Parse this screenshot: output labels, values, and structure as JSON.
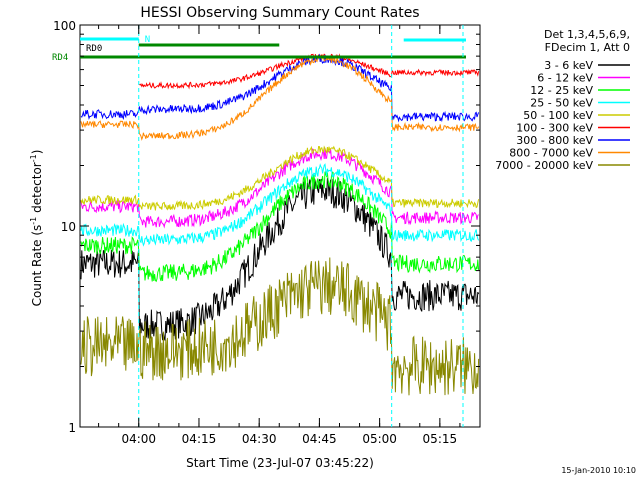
{
  "chart_data": {
    "type": "line",
    "title": "HESSI Observing Summary Count Rates",
    "xlabel": "Start Time (23-Jul-07 03:45:22)",
    "ylabel": "Count Rate (s",
    "ylabel_sup": "-1",
    "ylabel_mid": " detector",
    "ylabel_tail": ")",
    "y_scale": "log",
    "ylim": [
      1,
      100
    ],
    "xlim": [
      "03:45:22",
      "05:25:00"
    ],
    "x_ticks": [
      "04:00",
      "04:15",
      "04:30",
      "04:45",
      "05:00",
      "05:15"
    ],
    "y_ticks": [
      "1",
      "10",
      "100"
    ],
    "legend_header": [
      "Det 1,3,4,5,6,9,",
      "FDecim 1, Att 0"
    ],
    "series": [
      {
        "name": "3 - 6 keV",
        "color": "#000000",
        "pre": 6.5,
        "post": 4.5,
        "base": 3.2,
        "peak": 15.0,
        "noise": 0.18
      },
      {
        "name": "6 - 12 keV",
        "color": "#ff00ff",
        "pre": 12.5,
        "post": 11.0,
        "base": 10.5,
        "peak": 23.0,
        "noise": 0.07
      },
      {
        "name": "12 - 25 keV",
        "color": "#00ff00",
        "pre": 8.0,
        "post": 6.5,
        "base": 5.8,
        "peak": 17.0,
        "noise": 0.1
      },
      {
        "name": "25 - 50 keV",
        "color": "#00ffff",
        "pre": 9.5,
        "post": 9.0,
        "base": 8.5,
        "peak": 19.0,
        "noise": 0.07
      },
      {
        "name": "50 - 100 keV",
        "color": "#cccc00",
        "pre": 13.5,
        "post": 13.0,
        "base": 12.5,
        "peak": 24.0,
        "noise": 0.05
      },
      {
        "name": "100 - 300 keV",
        "color": "#ff0000",
        "pre": 0,
        "post": 58.0,
        "base": 50.0,
        "peak": 70.0,
        "noise": 0.03
      },
      {
        "name": "300 - 800 keV",
        "color": "#0000ff",
        "pre": 36.0,
        "post": 35.0,
        "base": 38.0,
        "peak": 68.0,
        "noise": 0.05
      },
      {
        "name": "800 - 7000 keV",
        "color": "#ff8800",
        "pre": 32.0,
        "post": 31.0,
        "base": 28.0,
        "peak": 68.0,
        "noise": 0.04
      },
      {
        "name": "7000 - 20000 keV",
        "color": "#888800",
        "pre": 2.5,
        "post": 2.0,
        "base": 2.4,
        "peak": 5.0,
        "noise": 0.35
      }
    ],
    "annotations": {
      "rd0": "RD0",
      "rd4": "RD4",
      "n": "N",
      "rd0_color": "#00ffff",
      "rd4_color": "#008800",
      "n_color": "#00ffff"
    },
    "timestamp": "15-Jan-2010 10:10"
  }
}
